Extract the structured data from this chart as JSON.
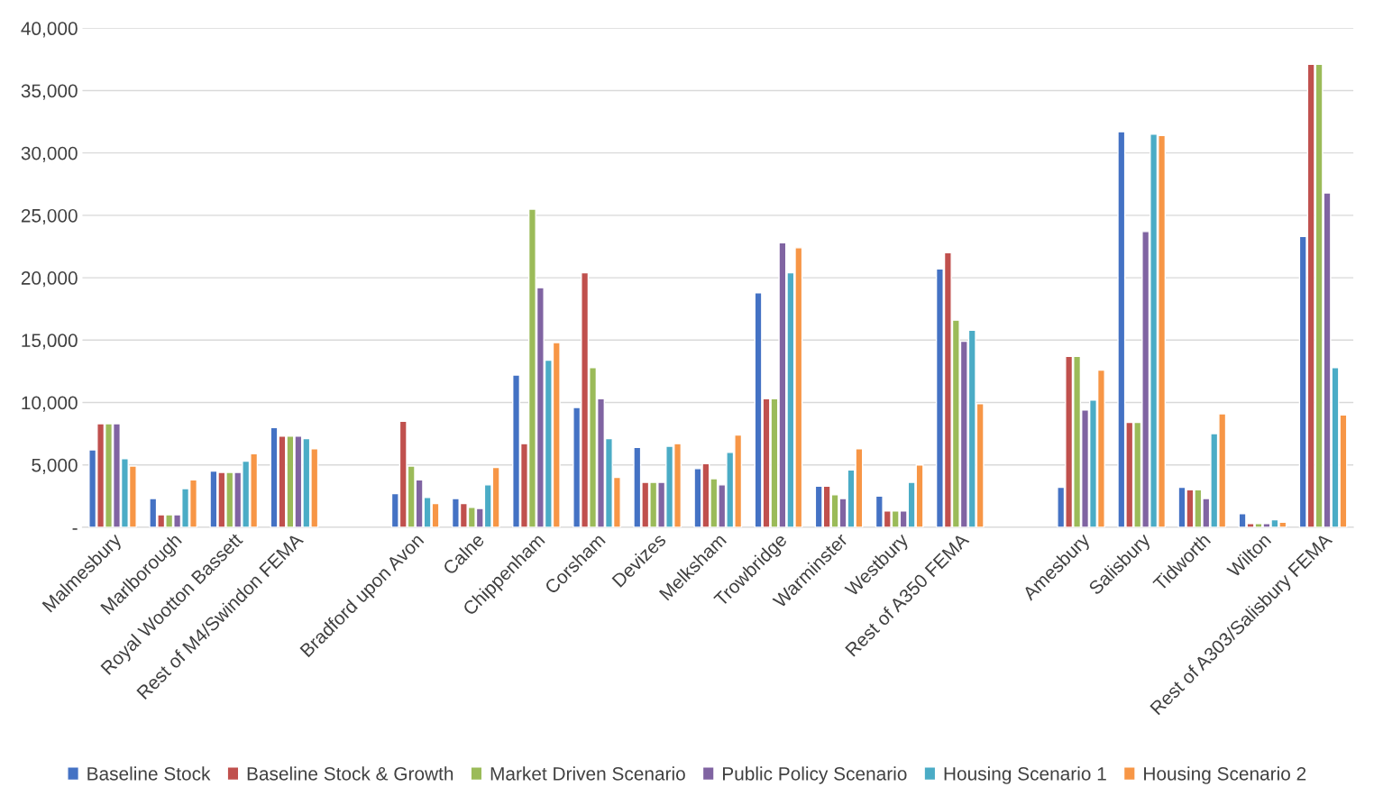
{
  "chart_data": {
    "type": "bar",
    "categories": [
      "Malmesbury",
      "Marlborough",
      "Royal Wootton Bassett",
      "Rest of M4/Swindon FEMA",
      null,
      "Bradford upon Avon",
      "Calne",
      "Chippenham",
      "Corsham",
      "Devizes",
      "Melksham",
      "Trowbridge",
      "Warminster",
      "Westbury",
      "Rest of A350 FEMA",
      null,
      "Amesbury",
      "Salisbury",
      "Tidworth",
      "Wilton",
      "Rest of A303/Salisbury FEMA"
    ],
    "series": [
      {
        "name": "Baseline Stock",
        "color": "#4472c4",
        "values": [
          6200,
          2300,
          4500,
          8000,
          null,
          2700,
          2300,
          12200,
          9600,
          6400,
          4700,
          18800,
          3300,
          2500,
          20700,
          null,
          3200,
          31700,
          3200,
          1100,
          23300
        ]
      },
      {
        "name": "Baseline Stock & Growth",
        "color": "#c0504d",
        "values": [
          8300,
          1000,
          4400,
          7300,
          null,
          8500,
          1900,
          6700,
          20400,
          3600,
          5100,
          10300,
          3300,
          1300,
          22000,
          null,
          13700,
          8400,
          3000,
          300,
          37100
        ]
      },
      {
        "name": "Market Driven Scenario",
        "color": "#9bbb59",
        "values": [
          8300,
          1000,
          4400,
          7300,
          null,
          4900,
          1600,
          25500,
          12800,
          3600,
          3900,
          10300,
          2600,
          1300,
          16600,
          null,
          13700,
          8400,
          3000,
          300,
          37100
        ]
      },
      {
        "name": "Public Policy Scenario",
        "color": "#8064a2",
        "values": [
          8300,
          1000,
          4400,
          7300,
          null,
          3800,
          1500,
          19200,
          10300,
          3600,
          3400,
          22800,
          2300,
          1300,
          14900,
          null,
          9400,
          23700,
          2300,
          300,
          26800
        ]
      },
      {
        "name": "Housing Scenario 1",
        "color": "#4bacc6",
        "values": [
          5500,
          3100,
          5300,
          7100,
          null,
          2400,
          3400,
          13400,
          7100,
          6500,
          6000,
          20400,
          4600,
          3600,
          15800,
          null,
          10200,
          31500,
          7500,
          600,
          12800
        ]
      },
      {
        "name": "Housing Scenario 2",
        "color": "#f79646",
        "values": [
          4900,
          3800,
          5900,
          6300,
          null,
          1900,
          4800,
          14800,
          4000,
          6700,
          7400,
          22400,
          6300,
          5000,
          9900,
          null,
          12600,
          31400,
          9100,
          400,
          9000
        ]
      }
    ],
    "ylim": [
      0,
      40000
    ],
    "yticks": [
      {
        "value": 0,
        "label": "-"
      },
      {
        "value": 5000,
        "label": "5,000"
      },
      {
        "value": 10000,
        "label": "10,000"
      },
      {
        "value": 15000,
        "label": "15,000"
      },
      {
        "value": 20000,
        "label": "20,000"
      },
      {
        "value": 25000,
        "label": "25,000"
      },
      {
        "value": 30000,
        "label": "30,000"
      },
      {
        "value": 35000,
        "label": "35,000"
      },
      {
        "value": 40000,
        "label": "40,000"
      }
    ],
    "grid": "y",
    "legend": "bottom"
  }
}
